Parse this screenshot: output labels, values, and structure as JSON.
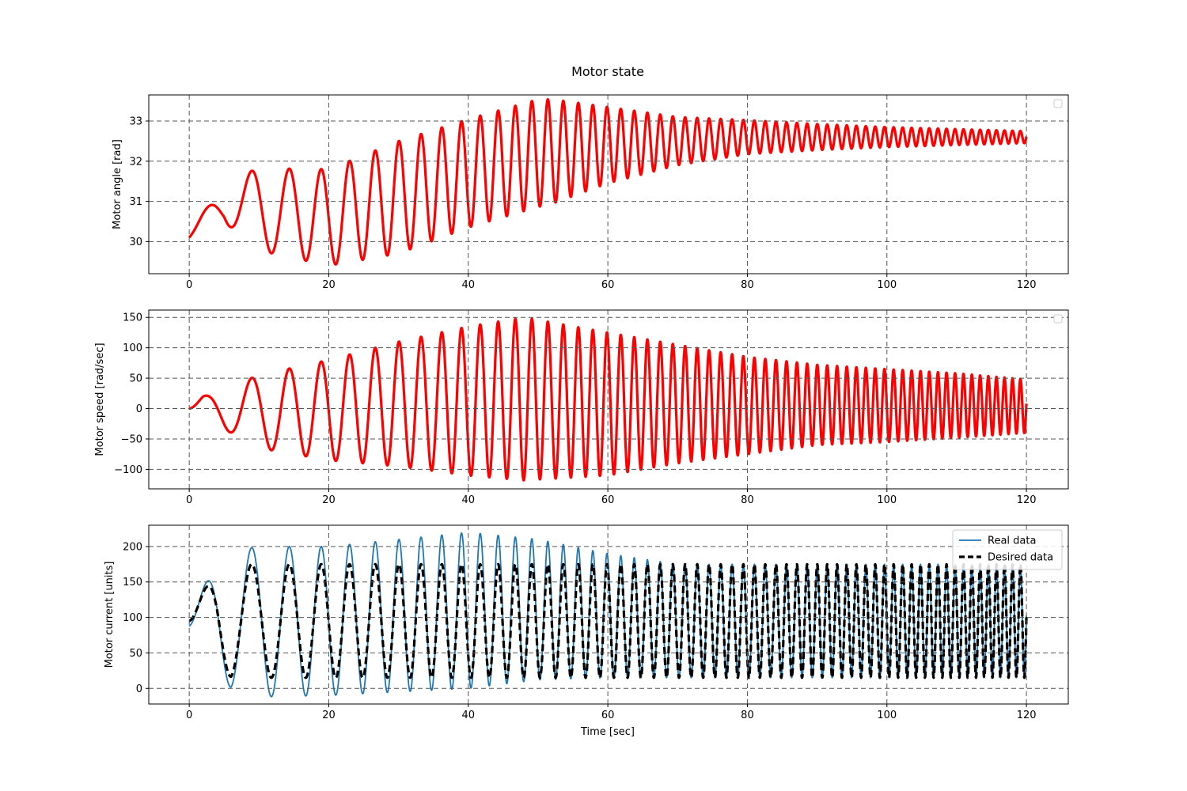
{
  "figure": {
    "title": "Motor state",
    "xlabel": "Time [sec]"
  },
  "colors": {
    "red": "#ff0000",
    "blue": "#1f77b4",
    "black": "#000000",
    "grid": "#555555"
  },
  "chart_data": [
    {
      "type": "line",
      "ylabel": "Motor angle [rad]",
      "xlim": [
        -5.8,
        126
      ],
      "ylim": [
        29.2,
        33.65
      ],
      "xticks": [
        0,
        20,
        40,
        60,
        80,
        100,
        120
      ],
      "yticks": [
        30,
        31,
        32,
        33
      ],
      "grid": true,
      "legend": {
        "placement": "top-right",
        "entries": []
      },
      "series": [
        {
          "color": "#ff0000",
          "description": "chirp oscillation 0-120 s; center and envelope (min/max) vs time",
          "center": {
            "x": [
              0,
              2,
              5,
              10,
              20,
              30,
              40,
              50,
              60,
              70,
              80,
              90,
              100,
              110,
              120
            ],
            "y": [
              30.1,
              30.5,
              31.0,
              30.8,
              30.6,
              31.1,
              31.7,
              32.2,
              32.4,
              32.5,
              32.6,
              32.6,
              32.6,
              32.6,
              32.6
            ]
          },
          "envelope_max": {
            "x": [
              0,
              10,
              20,
              30,
              40,
              50,
              52,
              60,
              70,
              80,
              90,
              100,
              110,
              120
            ],
            "y": [
              30.1,
              31.8,
              31.8,
              32.4,
              33.0,
              33.38,
              33.42,
              33.2,
              33.0,
              32.95,
              32.9,
              32.85,
              32.8,
              32.75
            ]
          },
          "envelope_min": {
            "x": [
              0,
              10,
              20,
              30,
              40,
              50,
              60,
              70,
              80,
              90,
              100,
              110,
              120
            ],
            "y": [
              30.1,
              29.75,
              29.4,
              29.6,
              30.3,
              30.7,
              31.3,
              31.8,
              32.1,
              32.25,
              32.35,
              32.4,
              32.45
            ]
          }
        }
      ]
    },
    {
      "type": "line",
      "ylabel": "Motor speed [rad/sec]",
      "xlim": [
        -5.8,
        126
      ],
      "ylim": [
        -132,
        162
      ],
      "xticks": [
        0,
        20,
        40,
        60,
        80,
        100,
        120
      ],
      "yticks": [
        -100,
        -50,
        0,
        50,
        100,
        150
      ],
      "grid": true,
      "legend": {
        "placement": "top-right",
        "entries": []
      },
      "series": [
        {
          "color": "#ff0000",
          "envelope_max": {
            "x": [
              0,
              2,
              10,
              20,
              30,
              40,
              48,
              60,
              70,
              80,
              90,
              100,
              110,
              120
            ],
            "y": [
              0,
              20,
              55,
              80,
              110,
              135,
              150,
              125,
              105,
              85,
              72,
              65,
              58,
              48
            ]
          },
          "envelope_min": {
            "x": [
              0,
              2,
              10,
              20,
              30,
              40,
              48,
              60,
              70,
              80,
              90,
              100,
              110,
              120
            ],
            "y": [
              0,
              -15,
              -65,
              -85,
              -95,
              -110,
              -118,
              -110,
              -90,
              -75,
              -60,
              -55,
              -48,
              -40
            ]
          }
        }
      ]
    },
    {
      "type": "line",
      "ylabel": "Motor current [units]",
      "xlim": [
        -5.8,
        126
      ],
      "ylim": [
        -22,
        230
      ],
      "xticks": [
        0,
        20,
        40,
        60,
        80,
        100,
        120
      ],
      "yticks": [
        0,
        50,
        100,
        150,
        200
      ],
      "grid": true,
      "legend": {
        "placement": "top-right",
        "entries": [
          "Real data",
          "Desired data"
        ]
      },
      "series": [
        {
          "name": "Real data",
          "color": "#1f77b4",
          "envelope_max": {
            "x": [
              0,
              4,
              10,
              20,
              30,
              40,
              50,
              60,
              70,
              80,
              100,
              120
            ],
            "y": [
              90,
              190,
              200,
              200,
              210,
              220,
              210,
              190,
              175,
              175,
              175,
              175
            ]
          },
          "envelope_min": {
            "x": [
              0,
              6,
              10,
              20,
              30,
              40,
              50,
              60,
              70,
              80,
              100,
              120
            ],
            "y": [
              85,
              0,
              -12,
              -10,
              -5,
              0,
              12,
              15,
              15,
              15,
              15,
              15
            ]
          }
        },
        {
          "name": "Desired data",
          "color": "#000000",
          "dashed": true,
          "envelope_max": {
            "x": [
              0,
              4,
              120
            ],
            "y": [
              95,
              175,
              175
            ]
          },
          "envelope_min": {
            "x": [
              0,
              6,
              120
            ],
            "y": [
              95,
              15,
              15
            ]
          }
        }
      ]
    }
  ]
}
